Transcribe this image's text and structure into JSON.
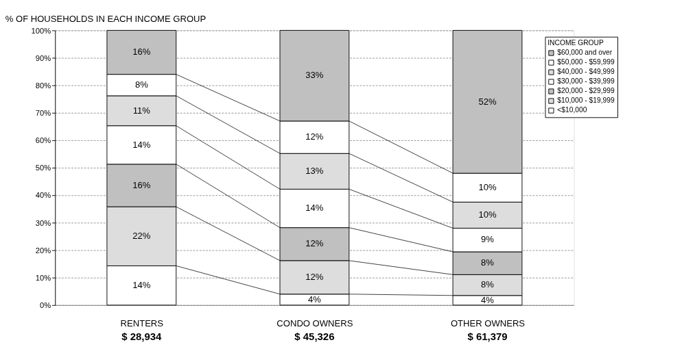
{
  "chart_data": {
    "type": "bar",
    "stacked": true,
    "title": "% OF HOUSEHOLDS IN EACH INCOME GROUP",
    "categories": [
      "RENTERS",
      "CONDO OWNERS",
      "OTHER OWNERS"
    ],
    "legend_title": "INCOME GROUP",
    "legend": "top right",
    "ylim": [
      0,
      100
    ],
    "yticks": [
      {
        "value": 0,
        "label": "0%"
      },
      {
        "value": 10,
        "label": "10%"
      },
      {
        "value": 20,
        "label": "20%"
      },
      {
        "value": 30,
        "label": "30%"
      },
      {
        "value": 40,
        "label": "40%"
      },
      {
        "value": 50,
        "label": "50%"
      },
      {
        "value": 60,
        "label": "60%"
      },
      {
        "value": 70,
        "label": "70%"
      },
      {
        "value": 80,
        "label": "80%"
      },
      {
        "value": 90,
        "label": "90%"
      },
      {
        "value": 100,
        "label": "100%"
      }
    ],
    "grid": "y",
    "series": [
      {
        "name": "<$10,000",
        "color": "#ffffff",
        "values": [
          14.3,
          4,
          3.5
        ],
        "value_labels": [
          "14%",
          "4%",
          "4%"
        ]
      },
      {
        "name": "$10,000 - $19,999",
        "color": "#dddddd",
        "values": [
          21.5,
          12.2,
          7.6
        ],
        "value_labels": [
          "22%",
          "12%",
          "8%"
        ]
      },
      {
        "name": "$20,000 - $29,999",
        "color": "#c0c0c0",
        "values": [
          15.5,
          12,
          8.3
        ],
        "value_labels": [
          "16%",
          "12%",
          "8%"
        ]
      },
      {
        "name": "$30,000 - $39,999",
        "color": "#ffffff",
        "values": [
          14,
          14,
          8.6
        ],
        "value_labels": [
          "14%",
          "14%",
          "9%"
        ]
      },
      {
        "name": "$40,000 - $49,999",
        "color": "#dddddd",
        "values": [
          10.9,
          13,
          9.5
        ],
        "value_labels": [
          "11%",
          "13%",
          "10%"
        ]
      },
      {
        "name": "$50,000 - $59,999",
        "color": "#ffffff",
        "values": [
          7.8,
          11.8,
          10.5
        ],
        "value_labels": [
          "8%",
          "12%",
          "10%"
        ]
      },
      {
        "name": "$60,000 and over",
        "color": "#c0c0c0",
        "values": [
          16,
          33,
          52
        ],
        "value_labels": [
          "16%",
          "33%",
          "52%"
        ]
      }
    ],
    "annotations": [
      "$ 28,934",
      "$ 45,326",
      "$ 61,379"
    ]
  }
}
